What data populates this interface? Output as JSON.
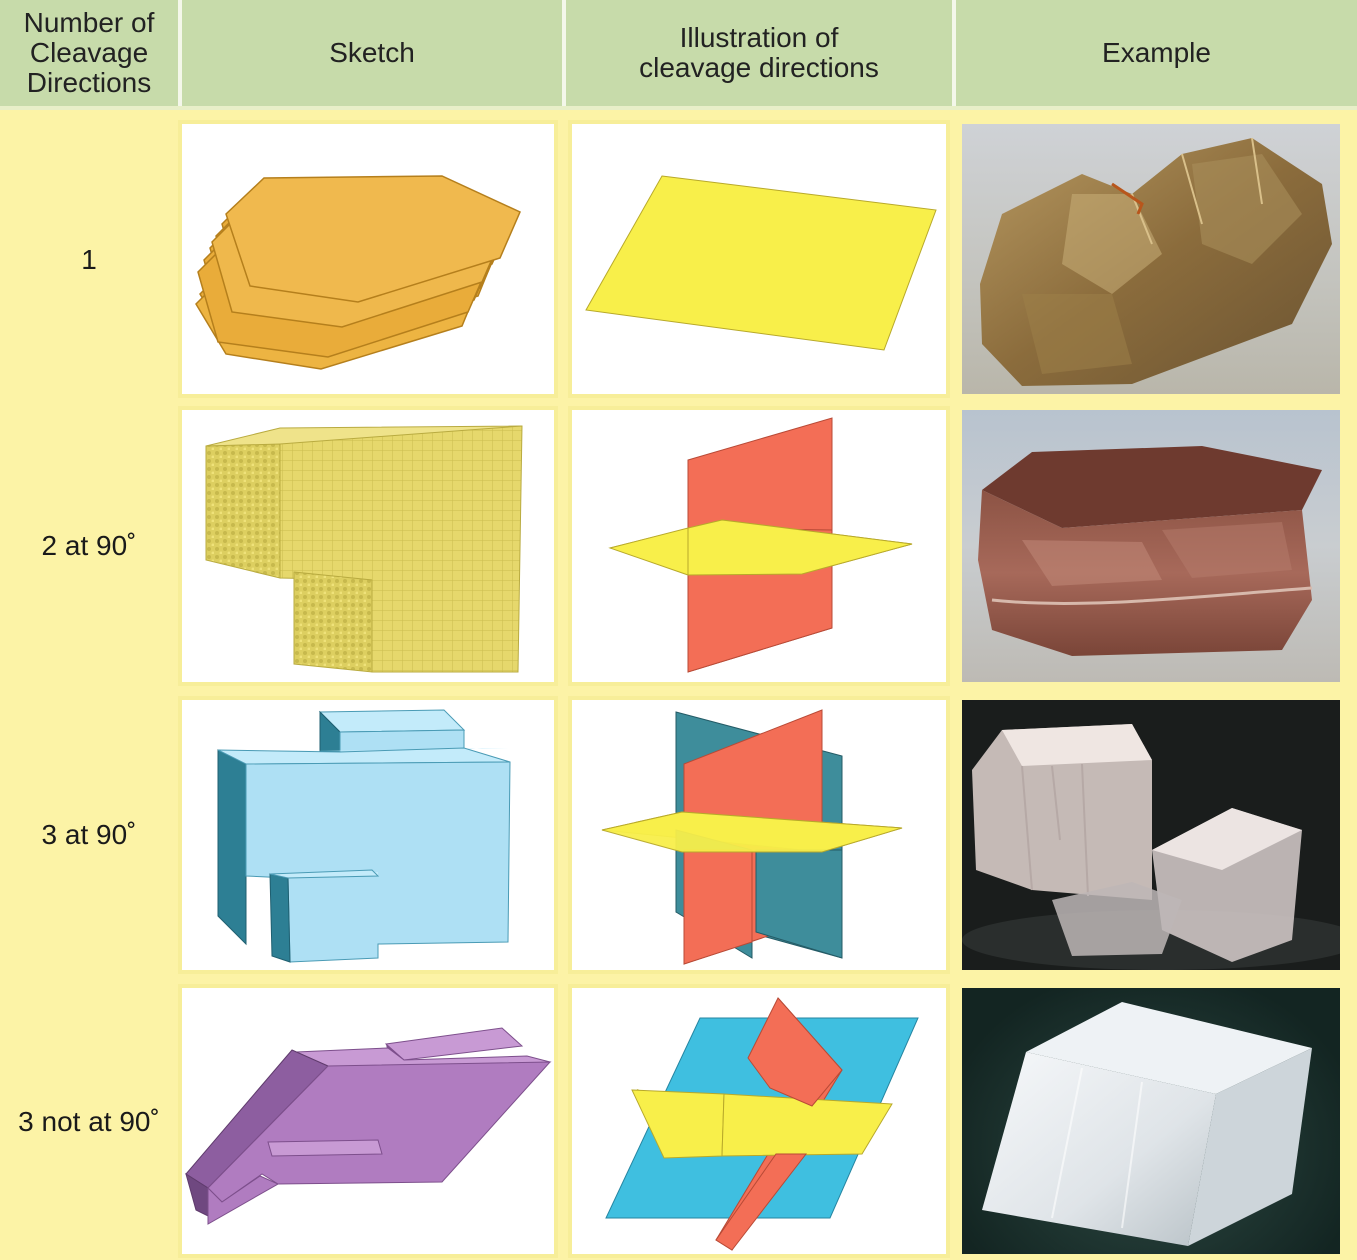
{
  "headers": {
    "number": "Number of\nCleavage\nDirections",
    "sketch": "Sketch",
    "illustration": "Illustration of\ncleavage directions",
    "example": "Example"
  },
  "rows": [
    {
      "label": "1"
    },
    {
      "label": "2 at 90˚"
    },
    {
      "label": "3 at 90˚"
    },
    {
      "label": "3 not at 90˚"
    }
  ],
  "colors": {
    "header_bg": "#c7dbaa",
    "page_bg": "#fcf3a6",
    "mica_orange": "#e9ac3a",
    "yellow_plane": "#f8ef4a",
    "red_plane": "#f36e56",
    "teal_plane": "#3e8d9b",
    "blue_plane": "#3fbfe0",
    "block_yellow": "#e4d667",
    "block_blue": "#aee0f4",
    "block_purple": "#b07cc0"
  }
}
